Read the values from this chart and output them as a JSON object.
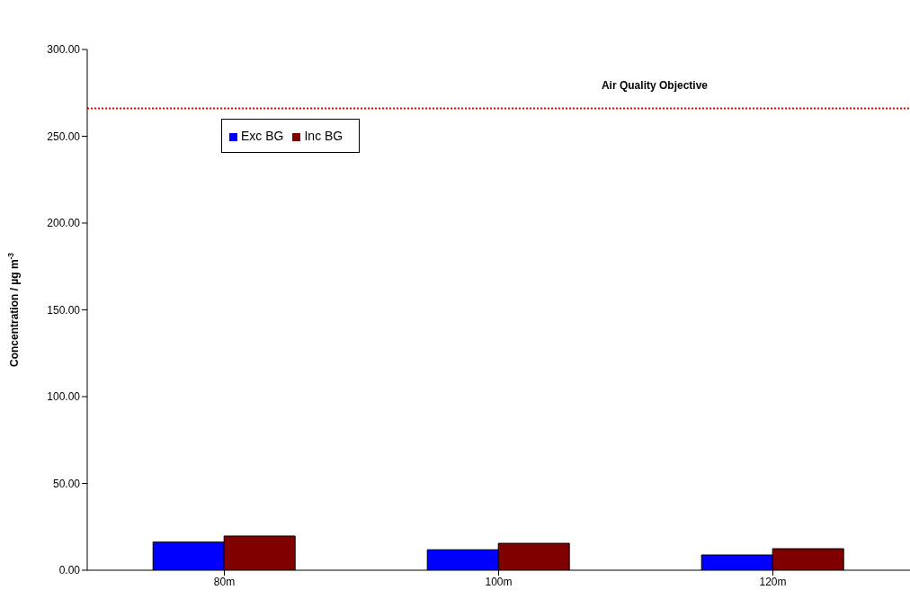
{
  "chart_data": {
    "type": "bar",
    "categories": [
      "80m",
      "100m",
      "120m"
    ],
    "series": [
      {
        "name": "Exc BG",
        "color": "#0000ff",
        "values": [
          16.2,
          11.8,
          8.8
        ]
      },
      {
        "name": "Inc BG",
        "color": "#800000",
        "values": [
          19.7,
          15.5,
          12.4
        ]
      }
    ],
    "ylabel": "Concentration / µg m$^{-3}$",
    "ylim": [
      0,
      300
    ],
    "yticks": [
      {
        "value": 0,
        "label": "0.00"
      },
      {
        "value": 50,
        "label": "50.00"
      },
      {
        "value": 100,
        "label": "100.00"
      },
      {
        "value": 150,
        "label": "150.00"
      },
      {
        "value": 200,
        "label": "200.00"
      },
      {
        "value": 250,
        "label": "250.00"
      },
      {
        "value": 300,
        "label": "300.00"
      }
    ],
    "ref_lines": [
      {
        "axis": "y",
        "value": 266,
        "label": "Air Quality Objective",
        "color": "#ff0000",
        "line_style": "dotted"
      }
    ],
    "legend": "top left",
    "grid": false
  }
}
